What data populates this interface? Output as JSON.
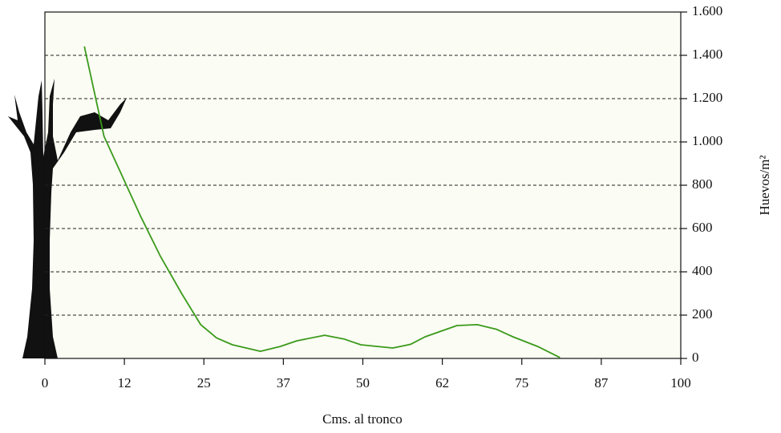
{
  "chart_data": {
    "type": "line",
    "x_label": "Cms. al tronco",
    "y_label": "Huevos/m²",
    "xlim": [
      0,
      100
    ],
    "xticks": [
      0,
      {
        "value": 12.5,
        "label": "12"
      },
      25,
      {
        "value": 37.5,
        "label": "37"
      },
      50,
      {
        "value": 62.5,
        "label": "62"
      },
      75,
      {
        "value": 87.5,
        "label": "87"
      },
      100
    ],
    "ylim": [
      0,
      1600
    ],
    "yticks": [
      0,
      200,
      400,
      600,
      800,
      {
        "value": 1000,
        "label": "1.000"
      },
      {
        "value": 1200,
        "label": "1.200"
      },
      {
        "value": 1400,
        "label": "1.400"
      },
      {
        "value": 1600,
        "label": "1.600"
      }
    ],
    "grid": true,
    "y_axis_side": "right",
    "color": "#3b9a1c",
    "x": [
      6.2,
      9.3,
      11.9,
      15,
      18.2,
      21.5,
      24.5,
      27,
      29.5,
      33.9,
      37,
      39.6,
      44,
      47,
      49.7,
      54.7,
      57.5,
      59.8,
      64.8,
      68,
      71,
      73.6,
      77.5,
      81
    ],
    "values": [
      1441,
      1026,
      859,
      660,
      470,
      300,
      156,
      95,
      63,
      33,
      55,
      81,
      107,
      90,
      63,
      48,
      65,
      100,
      152,
      156,
      135,
      100,
      55,
      4
    ]
  }
}
